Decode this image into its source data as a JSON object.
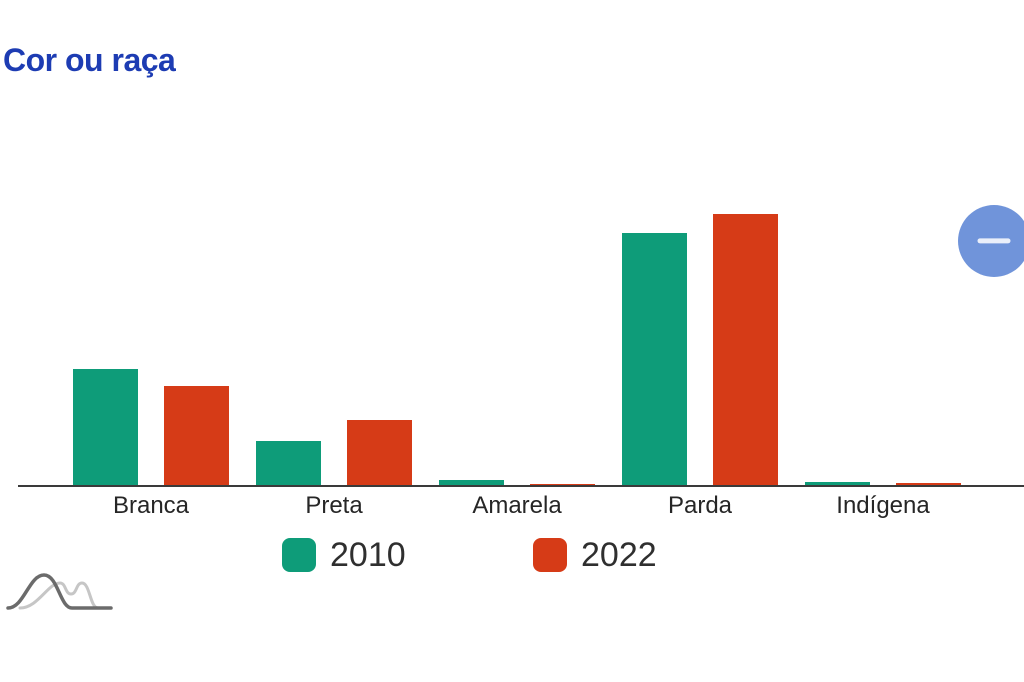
{
  "page": {
    "background": "#ffffff"
  },
  "header": {
    "title": "Cor ou raça",
    "title_color": "#1d3cb3"
  },
  "chart_data": {
    "type": "bar",
    "title": "Cor ou raça",
    "categories": [
      "Branca",
      "Preta",
      "Amarela",
      "Parda",
      "Indígena"
    ],
    "series": [
      {
        "name": "2010",
        "color": "#0e9c79",
        "values": [
          27.0,
          10.3,
          1.1,
          58.7,
          0.7
        ]
      },
      {
        "name": "2022",
        "color": "#d63b17",
        "values": [
          23.0,
          15.1,
          0.3,
          63.3,
          0.5
        ]
      }
    ],
    "xlabel": "",
    "ylabel": "",
    "ylim": [
      0,
      70
    ],
    "grid": false,
    "y_axis_visible": false,
    "axis_color": "#3a3a3a",
    "legend_position": "bottom"
  },
  "controls": {
    "minus_button": {
      "icon": "minus-icon",
      "color": "#7094da"
    }
  },
  "footer": {
    "icon": "distribution-curves-icon",
    "curve_dark_color": "#6b6b6b",
    "curve_light_color": "#c6c6c6"
  }
}
